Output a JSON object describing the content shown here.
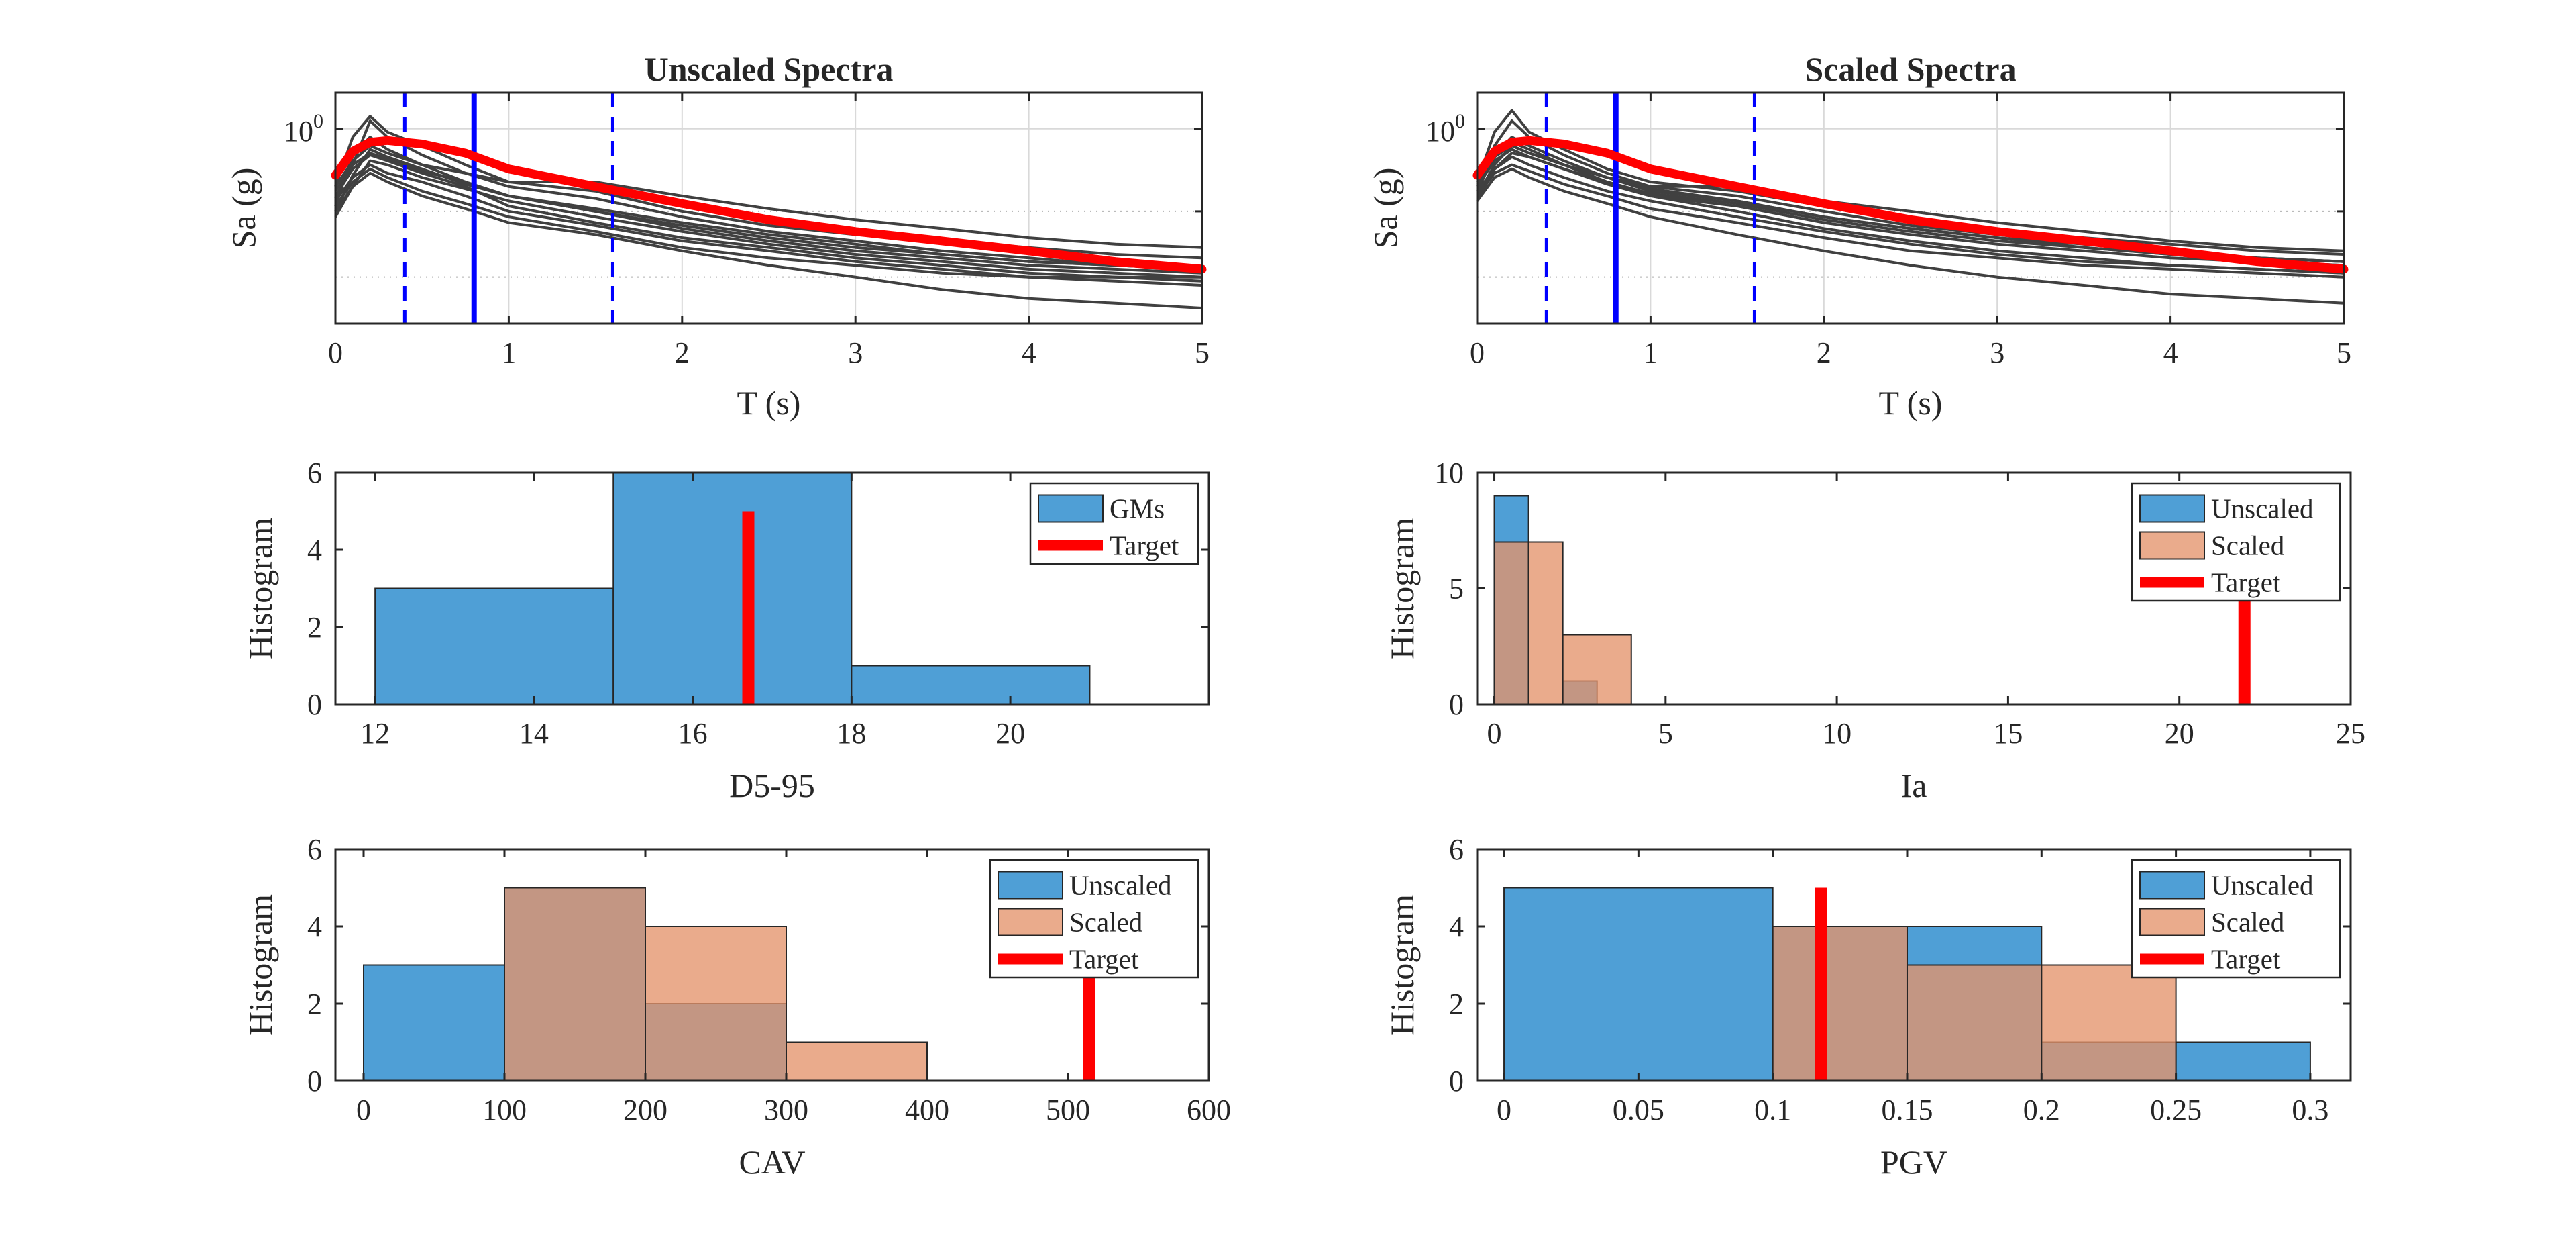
{
  "figure": {
    "background": "#ffffff"
  },
  "colors": {
    "gm_lines": "#404040",
    "target": "#ff0000",
    "period_lines": "#0000ff",
    "unscaled": "#4f9fd6",
    "scaled": "#e4936b",
    "overlap": "#a47a69",
    "grid": "#d9d9d9"
  },
  "chart_data": [
    {
      "id": "unscaled-spectra",
      "type": "line",
      "title": "Unscaled Spectra",
      "xlabel": "T (s)",
      "ylabel": "Sa (g)",
      "xlim": [
        0,
        5
      ],
      "ylim": [
        0.3,
        1.25
      ],
      "yscale": "log",
      "xticks": [
        0,
        1,
        2,
        3,
        4,
        5
      ],
      "yticks": [
        {
          "value": 1,
          "base": "10",
          "exp": "0"
        }
      ],
      "grid": true,
      "legend": null,
      "x": [
        0,
        0.1,
        0.2,
        0.3,
        0.5,
        0.75,
        1,
        1.5,
        2,
        2.5,
        3,
        3.5,
        4,
        4.5,
        5
      ],
      "gm_series": [
        {
          "values": [
            0.7,
            0.95,
            1.08,
            0.98,
            0.9,
            0.8,
            0.72,
            0.68,
            0.6,
            0.55,
            0.52,
            0.5,
            0.48,
            0.46,
            0.45
          ]
        },
        {
          "values": [
            0.65,
            0.8,
            1.05,
            0.95,
            0.85,
            0.76,
            0.7,
            0.65,
            0.58,
            0.53,
            0.5,
            0.47,
            0.45,
            0.43,
            0.42
          ]
        },
        {
          "values": [
            0.62,
            0.85,
            0.95,
            0.88,
            0.8,
            0.72,
            0.66,
            0.61,
            0.56,
            0.52,
            0.49,
            0.46,
            0.44,
            0.43,
            0.42
          ]
        },
        {
          "values": [
            0.6,
            0.75,
            0.88,
            0.84,
            0.78,
            0.71,
            0.66,
            0.6,
            0.54,
            0.5,
            0.47,
            0.45,
            0.43,
            0.42,
            0.41
          ]
        },
        {
          "values": [
            0.58,
            0.7,
            0.82,
            0.8,
            0.74,
            0.69,
            0.64,
            0.58,
            0.53,
            0.49,
            0.46,
            0.44,
            0.42,
            0.41,
            0.4
          ]
        },
        {
          "values": [
            0.7,
            0.82,
            0.9,
            0.86,
            0.8,
            0.76,
            0.72,
            0.72,
            0.66,
            0.61,
            0.57,
            0.54,
            0.51,
            0.49,
            0.48
          ]
        },
        {
          "values": [
            0.66,
            0.78,
            0.85,
            0.82,
            0.76,
            0.7,
            0.62,
            0.56,
            0.51,
            0.48,
            0.45,
            0.43,
            0.41,
            0.4,
            0.39
          ]
        },
        {
          "values": [
            0.64,
            0.74,
            0.8,
            0.76,
            0.72,
            0.66,
            0.6,
            0.55,
            0.5,
            0.47,
            0.44,
            0.42,
            0.4,
            0.39,
            0.38
          ]
        },
        {
          "values": [
            0.62,
            0.72,
            0.78,
            0.74,
            0.68,
            0.63,
            0.58,
            0.53,
            0.48,
            0.45,
            0.43,
            0.41,
            0.4,
            0.4,
            0.4
          ]
        },
        {
          "values": [
            0.6,
            0.7,
            0.76,
            0.72,
            0.66,
            0.61,
            0.56,
            0.52,
            0.47,
            0.43,
            0.4,
            0.37,
            0.35,
            0.34,
            0.33
          ]
        },
        {
          "values": [
            0.68,
            0.8,
            0.86,
            0.83,
            0.77,
            0.72,
            0.66,
            0.6,
            0.55,
            0.51,
            0.48,
            0.46,
            0.44,
            0.43,
            0.42
          ]
        }
      ],
      "target": {
        "values": [
          0.75,
          0.87,
          0.92,
          0.93,
          0.91,
          0.86,
          0.78,
          0.7,
          0.63,
          0.57,
          0.53,
          0.5,
          0.47,
          0.44,
          0.42
        ]
      },
      "period_lines": [
        {
          "x": 0.8,
          "style": "solid"
        },
        {
          "x": 0.4,
          "style": "dashed"
        },
        {
          "x": 1.6,
          "style": "dashed"
        }
      ]
    },
    {
      "id": "scaled-spectra",
      "type": "line",
      "title": "Scaled Spectra",
      "xlabel": "T (s)",
      "ylabel": "Sa (g)",
      "xlim": [
        0,
        5
      ],
      "ylim": [
        0.3,
        1.25
      ],
      "yscale": "log",
      "xticks": [
        0,
        1,
        2,
        3,
        4,
        5
      ],
      "yticks": [
        {
          "value": 1,
          "base": "10",
          "exp": "0"
        }
      ],
      "grid": true,
      "legend": null,
      "x": [
        0,
        0.1,
        0.2,
        0.3,
        0.5,
        0.75,
        1,
        1.5,
        2,
        2.5,
        3,
        3.5,
        4,
        4.5,
        5
      ],
      "gm_series": [
        {
          "values": [
            0.72,
            0.98,
            1.12,
            0.98,
            0.88,
            0.78,
            0.72,
            0.68,
            0.62,
            0.57,
            0.53,
            0.51,
            0.49,
            0.47,
            0.46
          ]
        },
        {
          "values": [
            0.7,
            0.9,
            1.05,
            0.95,
            0.85,
            0.76,
            0.7,
            0.66,
            0.6,
            0.55,
            0.52,
            0.49,
            0.47,
            0.45,
            0.44
          ]
        },
        {
          "values": [
            0.68,
            0.85,
            0.95,
            0.9,
            0.82,
            0.74,
            0.68,
            0.64,
            0.58,
            0.54,
            0.51,
            0.48,
            0.46,
            0.44,
            0.43
          ]
        },
        {
          "values": [
            0.66,
            0.8,
            0.9,
            0.86,
            0.8,
            0.72,
            0.67,
            0.63,
            0.57,
            0.53,
            0.5,
            0.48,
            0.46,
            0.45,
            0.44
          ]
        },
        {
          "values": [
            0.64,
            0.78,
            0.86,
            0.84,
            0.78,
            0.71,
            0.66,
            0.62,
            0.56,
            0.52,
            0.49,
            0.47,
            0.45,
            0.44,
            0.43
          ]
        },
        {
          "values": [
            0.74,
            0.86,
            0.92,
            0.88,
            0.8,
            0.74,
            0.7,
            0.7,
            0.64,
            0.6,
            0.56,
            0.53,
            0.5,
            0.48,
            0.47
          ]
        },
        {
          "values": [
            0.7,
            0.82,
            0.88,
            0.84,
            0.78,
            0.72,
            0.66,
            0.6,
            0.54,
            0.5,
            0.47,
            0.45,
            0.43,
            0.42,
            0.41
          ]
        },
        {
          "values": [
            0.68,
            0.78,
            0.84,
            0.8,
            0.74,
            0.68,
            0.64,
            0.58,
            0.53,
            0.49,
            0.46,
            0.44,
            0.43,
            0.42,
            0.41
          ]
        },
        {
          "values": [
            0.66,
            0.76,
            0.8,
            0.77,
            0.71,
            0.66,
            0.61,
            0.56,
            0.51,
            0.47,
            0.45,
            0.43,
            0.42,
            0.41,
            0.4
          ]
        },
        {
          "values": [
            0.64,
            0.74,
            0.78,
            0.74,
            0.68,
            0.63,
            0.58,
            0.52,
            0.47,
            0.43,
            0.4,
            0.38,
            0.36,
            0.35,
            0.34
          ]
        },
        {
          "values": [
            0.71,
            0.84,
            0.9,
            0.86,
            0.8,
            0.74,
            0.69,
            0.64,
            0.58,
            0.54,
            0.51,
            0.49,
            0.47,
            0.45,
            0.44
          ]
        }
      ],
      "target": {
        "values": [
          0.75,
          0.87,
          0.92,
          0.93,
          0.91,
          0.86,
          0.78,
          0.7,
          0.63,
          0.57,
          0.53,
          0.5,
          0.47,
          0.44,
          0.42
        ]
      },
      "period_lines": [
        {
          "x": 0.8,
          "style": "solid"
        },
        {
          "x": 0.4,
          "style": "dashed"
        },
        {
          "x": 1.6,
          "style": "dashed"
        }
      ]
    },
    {
      "id": "hist-d595",
      "type": "bar",
      "xlabel": "D5-95",
      "ylabel": "Histogram",
      "xlim": [
        11.5,
        22.5
      ],
      "ylim": [
        0,
        6
      ],
      "xticks": [
        12,
        14,
        16,
        18,
        20
      ],
      "yticks": [
        0,
        2,
        4,
        6
      ],
      "legend": "top-right",
      "series": [
        {
          "name": "GMs",
          "color_key": "unscaled",
          "bins": [
            [
              12,
              15,
              3
            ],
            [
              15,
              18,
              6
            ],
            [
              18,
              21,
              1
            ]
          ]
        }
      ],
      "target": {
        "name": "Target",
        "x": 16.7,
        "height": 5
      }
    },
    {
      "id": "hist-ia",
      "type": "bar",
      "xlabel": "Ia",
      "ylabel": "Histogram",
      "xlim": [
        -0.5,
        25
      ],
      "ylim": [
        0,
        10
      ],
      "xticks": [
        0,
        5,
        10,
        15,
        20,
        25
      ],
      "yticks": [
        0,
        5,
        10
      ],
      "legend": "top-right",
      "series": [
        {
          "name": "Unscaled",
          "color_key": "unscaled",
          "bins": [
            [
              0,
              1,
              9
            ],
            [
              1,
              2,
              0
            ],
            [
              2,
              3,
              1
            ]
          ]
        },
        {
          "name": "Scaled",
          "color_key": "scaled",
          "bins": [
            [
              0,
              1,
              7
            ],
            [
              1,
              2,
              7
            ],
            [
              2,
              4,
              3
            ]
          ]
        }
      ],
      "target": {
        "name": "Target",
        "x": 21.9,
        "height": 5
      }
    },
    {
      "id": "hist-cav",
      "type": "bar",
      "xlabel": "CAV",
      "ylabel": "Histogram",
      "xlim": [
        -20,
        600
      ],
      "ylim": [
        0,
        6
      ],
      "xticks": [
        0,
        100,
        200,
        300,
        400,
        500,
        600
      ],
      "yticks": [
        0,
        2,
        4,
        6
      ],
      "legend": "top-right",
      "series": [
        {
          "name": "Unscaled",
          "color_key": "unscaled",
          "bins": [
            [
              0,
              100,
              3
            ],
            [
              100,
              200,
              5
            ],
            [
              200,
              300,
              2
            ]
          ]
        },
        {
          "name": "Scaled",
          "color_key": "scaled",
          "bins": [
            [
              100,
              200,
              5
            ],
            [
              200,
              300,
              4
            ],
            [
              300,
              400,
              1
            ]
          ]
        }
      ],
      "target": {
        "name": "Target",
        "x": 515,
        "height": 5
      }
    },
    {
      "id": "hist-pgv",
      "type": "bar",
      "xlabel": "PGV",
      "ylabel": "Histogram",
      "xlim": [
        -0.01,
        0.315
      ],
      "ylim": [
        0,
        6
      ],
      "xticks": [
        0,
        0.05,
        0.1,
        0.15,
        0.2,
        0.25,
        0.3
      ],
      "yticks": [
        0,
        2,
        4,
        6
      ],
      "legend": "top-right",
      "series": [
        {
          "name": "Unscaled",
          "color_key": "unscaled",
          "bins": [
            [
              0,
              0.1,
              5
            ],
            [
              0.1,
              0.15,
              4
            ],
            [
              0.15,
              0.2,
              4
            ],
            [
              0.2,
              0.25,
              1
            ],
            [
              0.25,
              0.3,
              1
            ]
          ]
        },
        {
          "name": "Scaled",
          "color_key": "scaled",
          "bins": [
            [
              0.1,
              0.15,
              4
            ],
            [
              0.15,
              0.2,
              3
            ],
            [
              0.2,
              0.25,
              3
            ]
          ]
        }
      ],
      "target": {
        "name": "Target",
        "x": 0.118,
        "height": 5
      }
    }
  ]
}
